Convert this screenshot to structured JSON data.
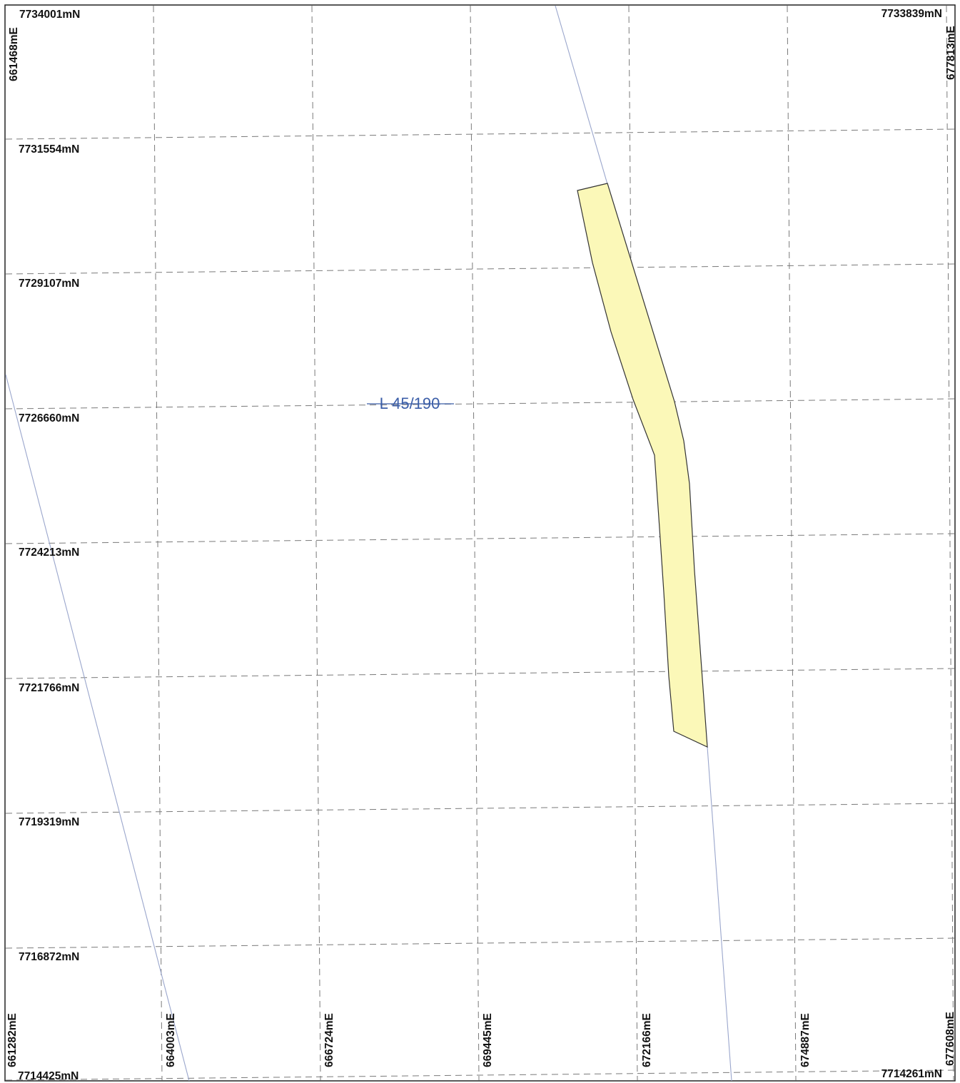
{
  "map": {
    "tenement_label": "L 45/190",
    "colors": {
      "grid": "#7a7a7a",
      "frame": "#222222",
      "boundary_line": "#9aa6cc",
      "tenement_fill": "#fbf8b8",
      "tenement_stroke": "#333333",
      "label": "#3b5ea8"
    },
    "corner_labels": {
      "top_left_northing": "7734001mN",
      "top_left_easting": "661468mE",
      "top_right_northing": "7733839mN",
      "top_right_easting": "677813mE",
      "bottom_left_northing": "7714425mN",
      "bottom_left_easting": "661282mE",
      "bottom_right_northing": "7714261mN",
      "bottom_right_easting": "677608mE"
    },
    "northing_labels": [
      "7731554mN",
      "7729107mN",
      "7726660mN",
      "7724213mN",
      "7721766mN",
      "7719319mN",
      "7716872mN"
    ],
    "easting_labels": [
      "664003mE",
      "666724mE",
      "669445mE",
      "672166mE",
      "674887mE"
    ]
  }
}
